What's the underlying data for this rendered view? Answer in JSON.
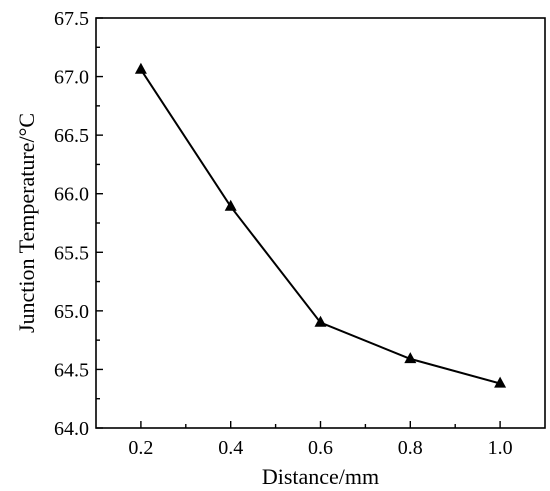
{
  "chart_data": {
    "type": "line",
    "title": "",
    "xlabel": "Distance/mm",
    "ylabel": "Junction Temperature/°C",
    "xlim": [
      0.1,
      1.1
    ],
    "ylim": [
      64.0,
      67.5
    ],
    "xticks": [
      "0.2",
      "0.4",
      "0.6",
      "0.8",
      "1.0"
    ],
    "xtick_values": [
      0.2,
      0.4,
      0.6,
      0.8,
      1.0
    ],
    "yticks": [
      "64.0",
      "64.5",
      "65.0",
      "65.5",
      "66.0",
      "66.5",
      "67.0",
      "67.5"
    ],
    "ytick_values": [
      64.0,
      64.5,
      65.0,
      65.5,
      66.0,
      66.5,
      67.0,
      67.5
    ],
    "grid": false,
    "legend": "none",
    "marker": "triangle",
    "line_color": "#000000",
    "series": [
      {
        "x": [
          0.2,
          0.4,
          0.6,
          0.8,
          1.0
        ],
        "values": [
          67.06,
          65.89,
          64.9,
          64.59,
          64.38
        ]
      }
    ]
  }
}
